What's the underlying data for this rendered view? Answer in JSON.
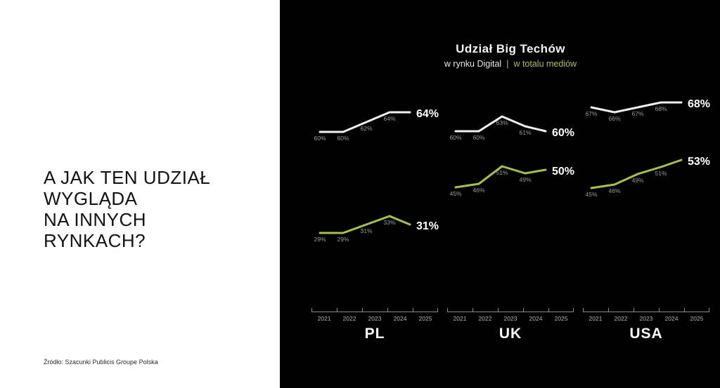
{
  "left_panel": {
    "headline_lines": [
      "A JAK TEN UDZIAŁ",
      "WYGLĄDA",
      "NA INNYCH",
      "RYNKACH?"
    ],
    "source": "Źródło: Szacunki Publicis Groupe Polska"
  },
  "chart_header": {
    "title": "Udział Big Techów",
    "subtitle_digital": "w rynku Digital",
    "subtitle_divider": "|",
    "subtitle_total": "w totalu mediów"
  },
  "colors": {
    "background": "#000000",
    "digital_line": "#efefef",
    "total_line": "#a5c438",
    "small_label": "#9a9a9a",
    "final_label": "#ffffff"
  },
  "chart_data": [
    {
      "type": "line",
      "country": "PL",
      "x": [
        "2021",
        "2022",
        "2023",
        "2024",
        "2025"
      ],
      "legend_position": "top",
      "grid": false,
      "series": [
        {
          "name": "w rynku Digital",
          "values": [
            60,
            60,
            62,
            64,
            64
          ],
          "labels": [
            "60%",
            "60%",
            "62%",
            "64%"
          ],
          "final_label": "64%"
        },
        {
          "name": "w totalu mediów",
          "values": [
            29,
            29,
            31,
            33,
            31
          ],
          "labels": [
            "29%",
            "29%",
            "31%",
            "33%"
          ],
          "final_label": "31%"
        }
      ]
    },
    {
      "type": "line",
      "country": "UK",
      "x": [
        "2021",
        "2022",
        "2023",
        "2024",
        "2025"
      ],
      "legend_position": "top",
      "grid": false,
      "series": [
        {
          "name": "w rynku Digital",
          "values": [
            60,
            60,
            63,
            61,
            60
          ],
          "labels": [
            "60%",
            "60%",
            "63%",
            "61%"
          ],
          "final_label": "60%"
        },
        {
          "name": "w totalu mediów",
          "values": [
            45,
            46,
            51,
            49,
            50
          ],
          "labels": [
            "45%",
            "46%",
            "51%",
            "49%"
          ],
          "final_label": "50%"
        }
      ]
    },
    {
      "type": "line",
      "country": "USA",
      "x": [
        "2021",
        "2022",
        "2023",
        "2024",
        "2025"
      ],
      "legend_position": "top",
      "grid": false,
      "series": [
        {
          "name": "w rynku Digital",
          "values": [
            67,
            66,
            67,
            68,
            68
          ],
          "labels": [
            "67%",
            "66%",
            "67%",
            "68%"
          ],
          "final_label": "68%"
        },
        {
          "name": "w totalu mediów",
          "values": [
            45,
            46,
            49,
            51,
            53
          ],
          "labels": [
            "45%",
            "46%",
            "49%",
            "51%"
          ],
          "final_label": "53%"
        }
      ]
    }
  ]
}
